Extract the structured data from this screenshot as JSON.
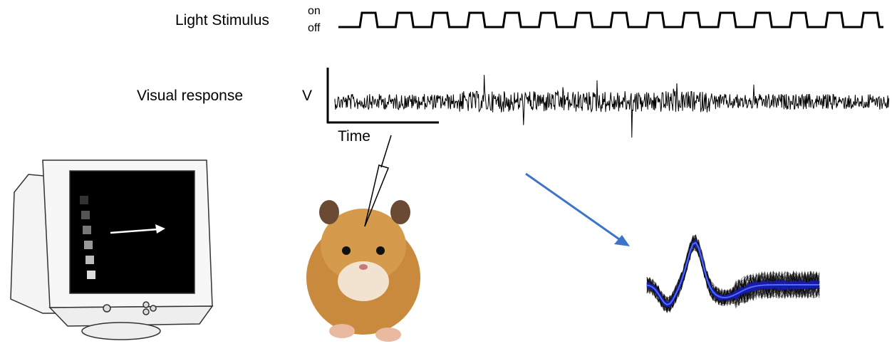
{
  "stimulus": {
    "label": "Light Stimulus",
    "on": "on",
    "off": "off"
  },
  "response": {
    "label": "Visual response",
    "y_axis": "V",
    "x_axis": "Time"
  }
}
